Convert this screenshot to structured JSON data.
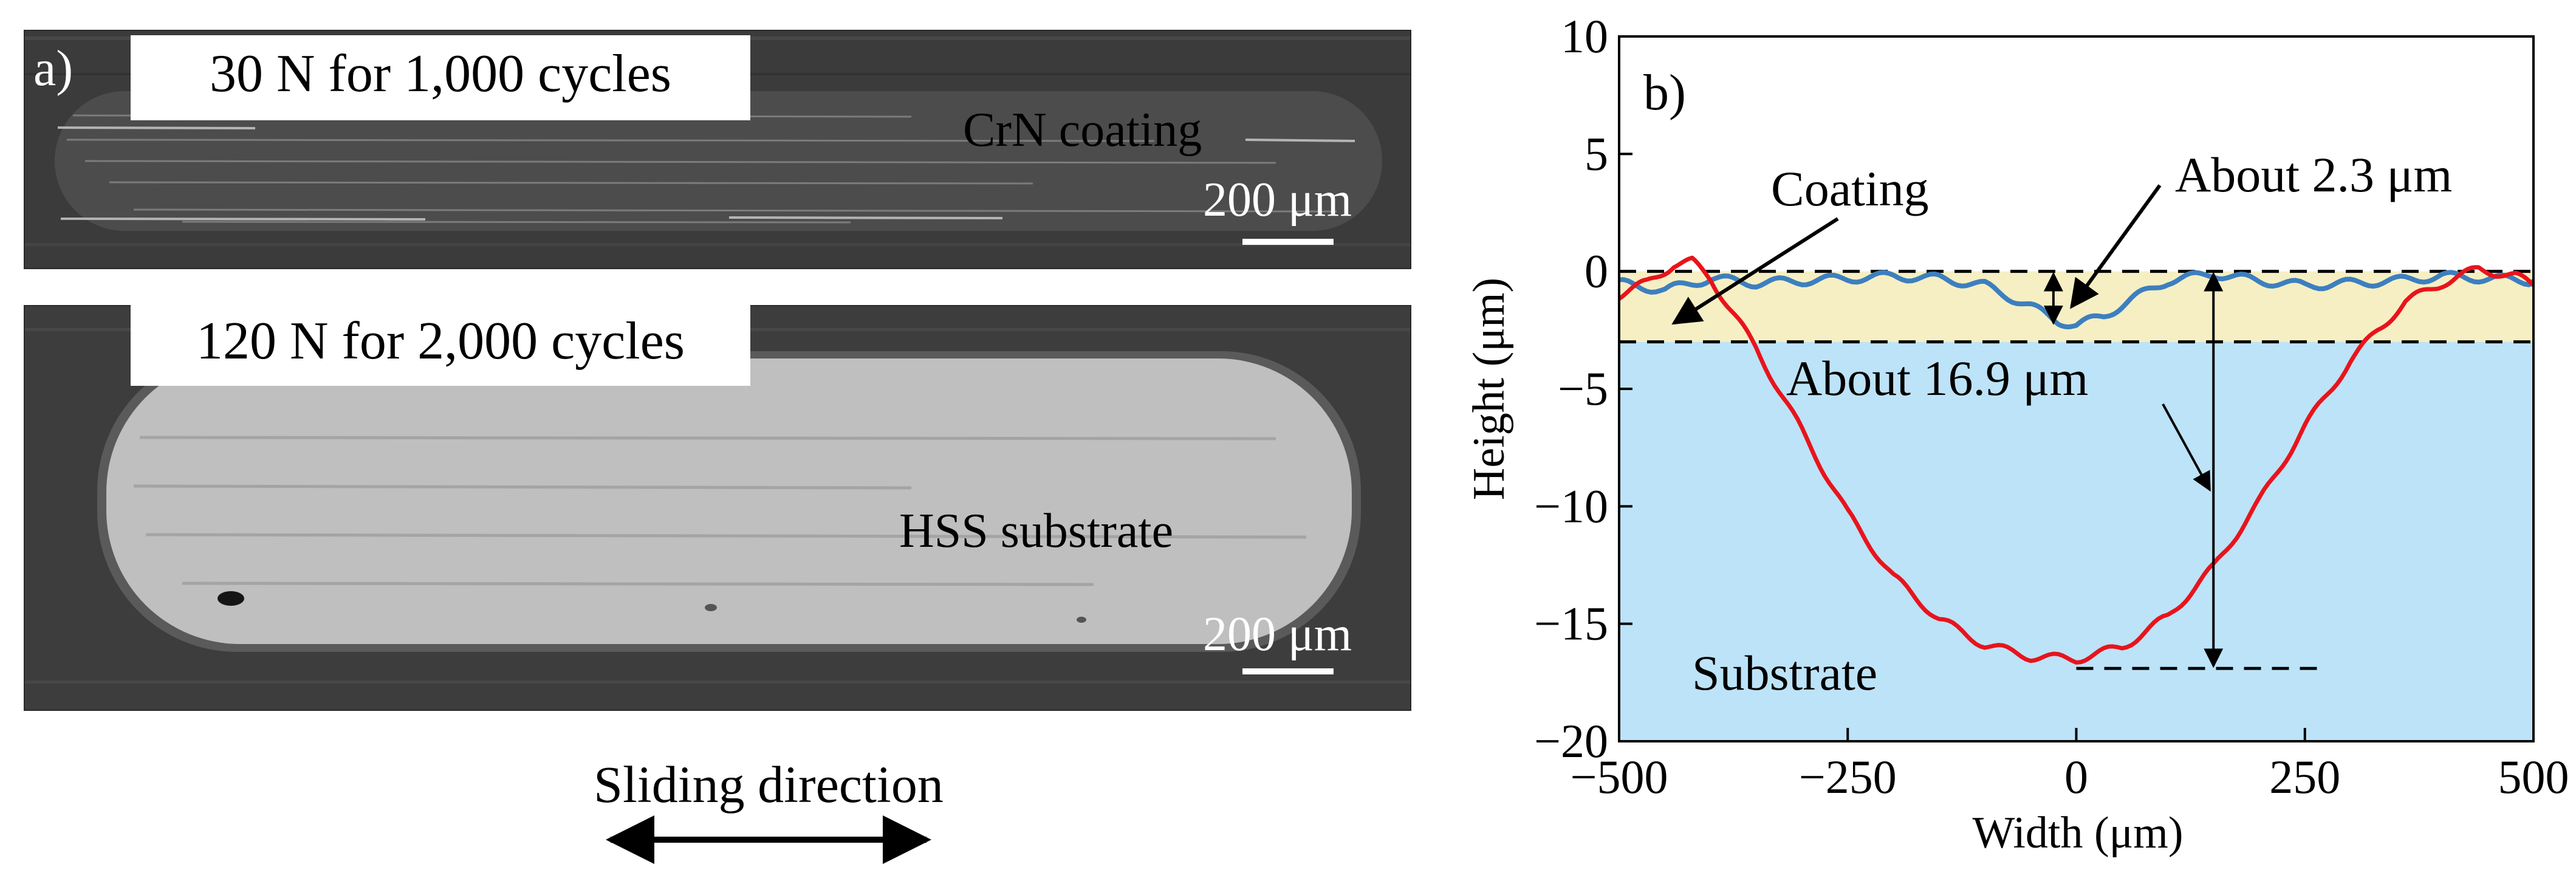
{
  "panel_a": {
    "label": "a)",
    "image1": {
      "caption": "30 N for 1,000 cycles",
      "material_label": "CrN coating",
      "scale_label": "200 μm"
    },
    "image2": {
      "caption": "120 N for 2,000 cycles",
      "material_label": "HSS substrate",
      "scale_label": "200 μm"
    },
    "sliding_label": "Sliding direction"
  },
  "colors": {
    "coating_band": "#f6efc3",
    "substrate_band": "#bde3f8",
    "red_series": "#e8141c",
    "blue_series": "#3d7fbf"
  },
  "chart_data": {
    "type": "line",
    "panel_label": "b)",
    "xlabel": "Width (μm)",
    "ylabel": "Height (μm)",
    "xlim": [
      -500,
      500
    ],
    "ylim": [
      -20,
      10
    ],
    "xticks": [
      -500,
      -250,
      0,
      250,
      500
    ],
    "xtick_labels": [
      "−500",
      "−250",
      "0",
      "250",
      "500"
    ],
    "yticks": [
      10,
      5,
      0,
      -5,
      -10,
      -15,
      -20
    ],
    "ytick_labels": [
      "10",
      "5",
      "0",
      "−5",
      "−10",
      "−15",
      "−20"
    ],
    "regions": [
      {
        "name": "Coating",
        "from": 0,
        "to": -3,
        "color": "#f6efc3"
      },
      {
        "name": "Substrate",
        "from": -3,
        "to": -20,
        "color": "#bde3f8"
      }
    ],
    "reference_lines": [
      {
        "y": 0,
        "x_range": [
          -500,
          500
        ]
      },
      {
        "y": -3,
        "x_range": [
          -500,
          500
        ]
      },
      {
        "y": -16.9,
        "x_range": [
          0,
          270
        ]
      }
    ],
    "annotations": [
      {
        "text": "About 2.3 μm",
        "x": -25,
        "y_from": 0,
        "y_to": -2.3
      },
      {
        "text": "About 16.9 μm",
        "x": 150,
        "y_from": 0,
        "y_to": -16.9
      },
      {
        "text": "Coating"
      },
      {
        "text": "Substrate"
      }
    ],
    "series": [
      {
        "name": "30 N for 1,000 cycles",
        "color": "#3d7fbf",
        "x": [
          -500,
          -450,
          -400,
          -350,
          -300,
          -250,
          -200,
          -150,
          -100,
          -50,
          -20,
          0,
          30,
          60,
          100,
          150,
          200,
          250,
          300,
          350,
          400,
          450,
          500
        ],
        "y": [
          -0.5,
          -0.8,
          -0.3,
          -0.5,
          -0.4,
          -0.3,
          -0.2,
          -0.3,
          -0.6,
          -1.5,
          -2.1,
          -2.3,
          -1.9,
          -1.2,
          -0.4,
          -0.1,
          -0.4,
          -0.6,
          -0.5,
          -0.4,
          -0.2,
          -0.3,
          -0.4
        ]
      },
      {
        "name": "120 N for 2,000 cycles",
        "color": "#e8141c",
        "x": [
          -500,
          -470,
          -440,
          -420,
          -400,
          -380,
          -350,
          -300,
          -250,
          -200,
          -150,
          -100,
          -50,
          0,
          50,
          100,
          150,
          200,
          250,
          300,
          330,
          360,
          400,
          440,
          480,
          500
        ],
        "y": [
          -1.0,
          -0.5,
          0.3,
          0.4,
          -0.3,
          -1.5,
          -3.3,
          -6.8,
          -10.3,
          -13.0,
          -14.8,
          -15.9,
          -16.4,
          -16.5,
          -16.0,
          -14.7,
          -12.6,
          -9.8,
          -6.6,
          -3.8,
          -2.5,
          -1.3,
          -0.5,
          0.1,
          -0.2,
          -0.6
        ]
      }
    ]
  }
}
